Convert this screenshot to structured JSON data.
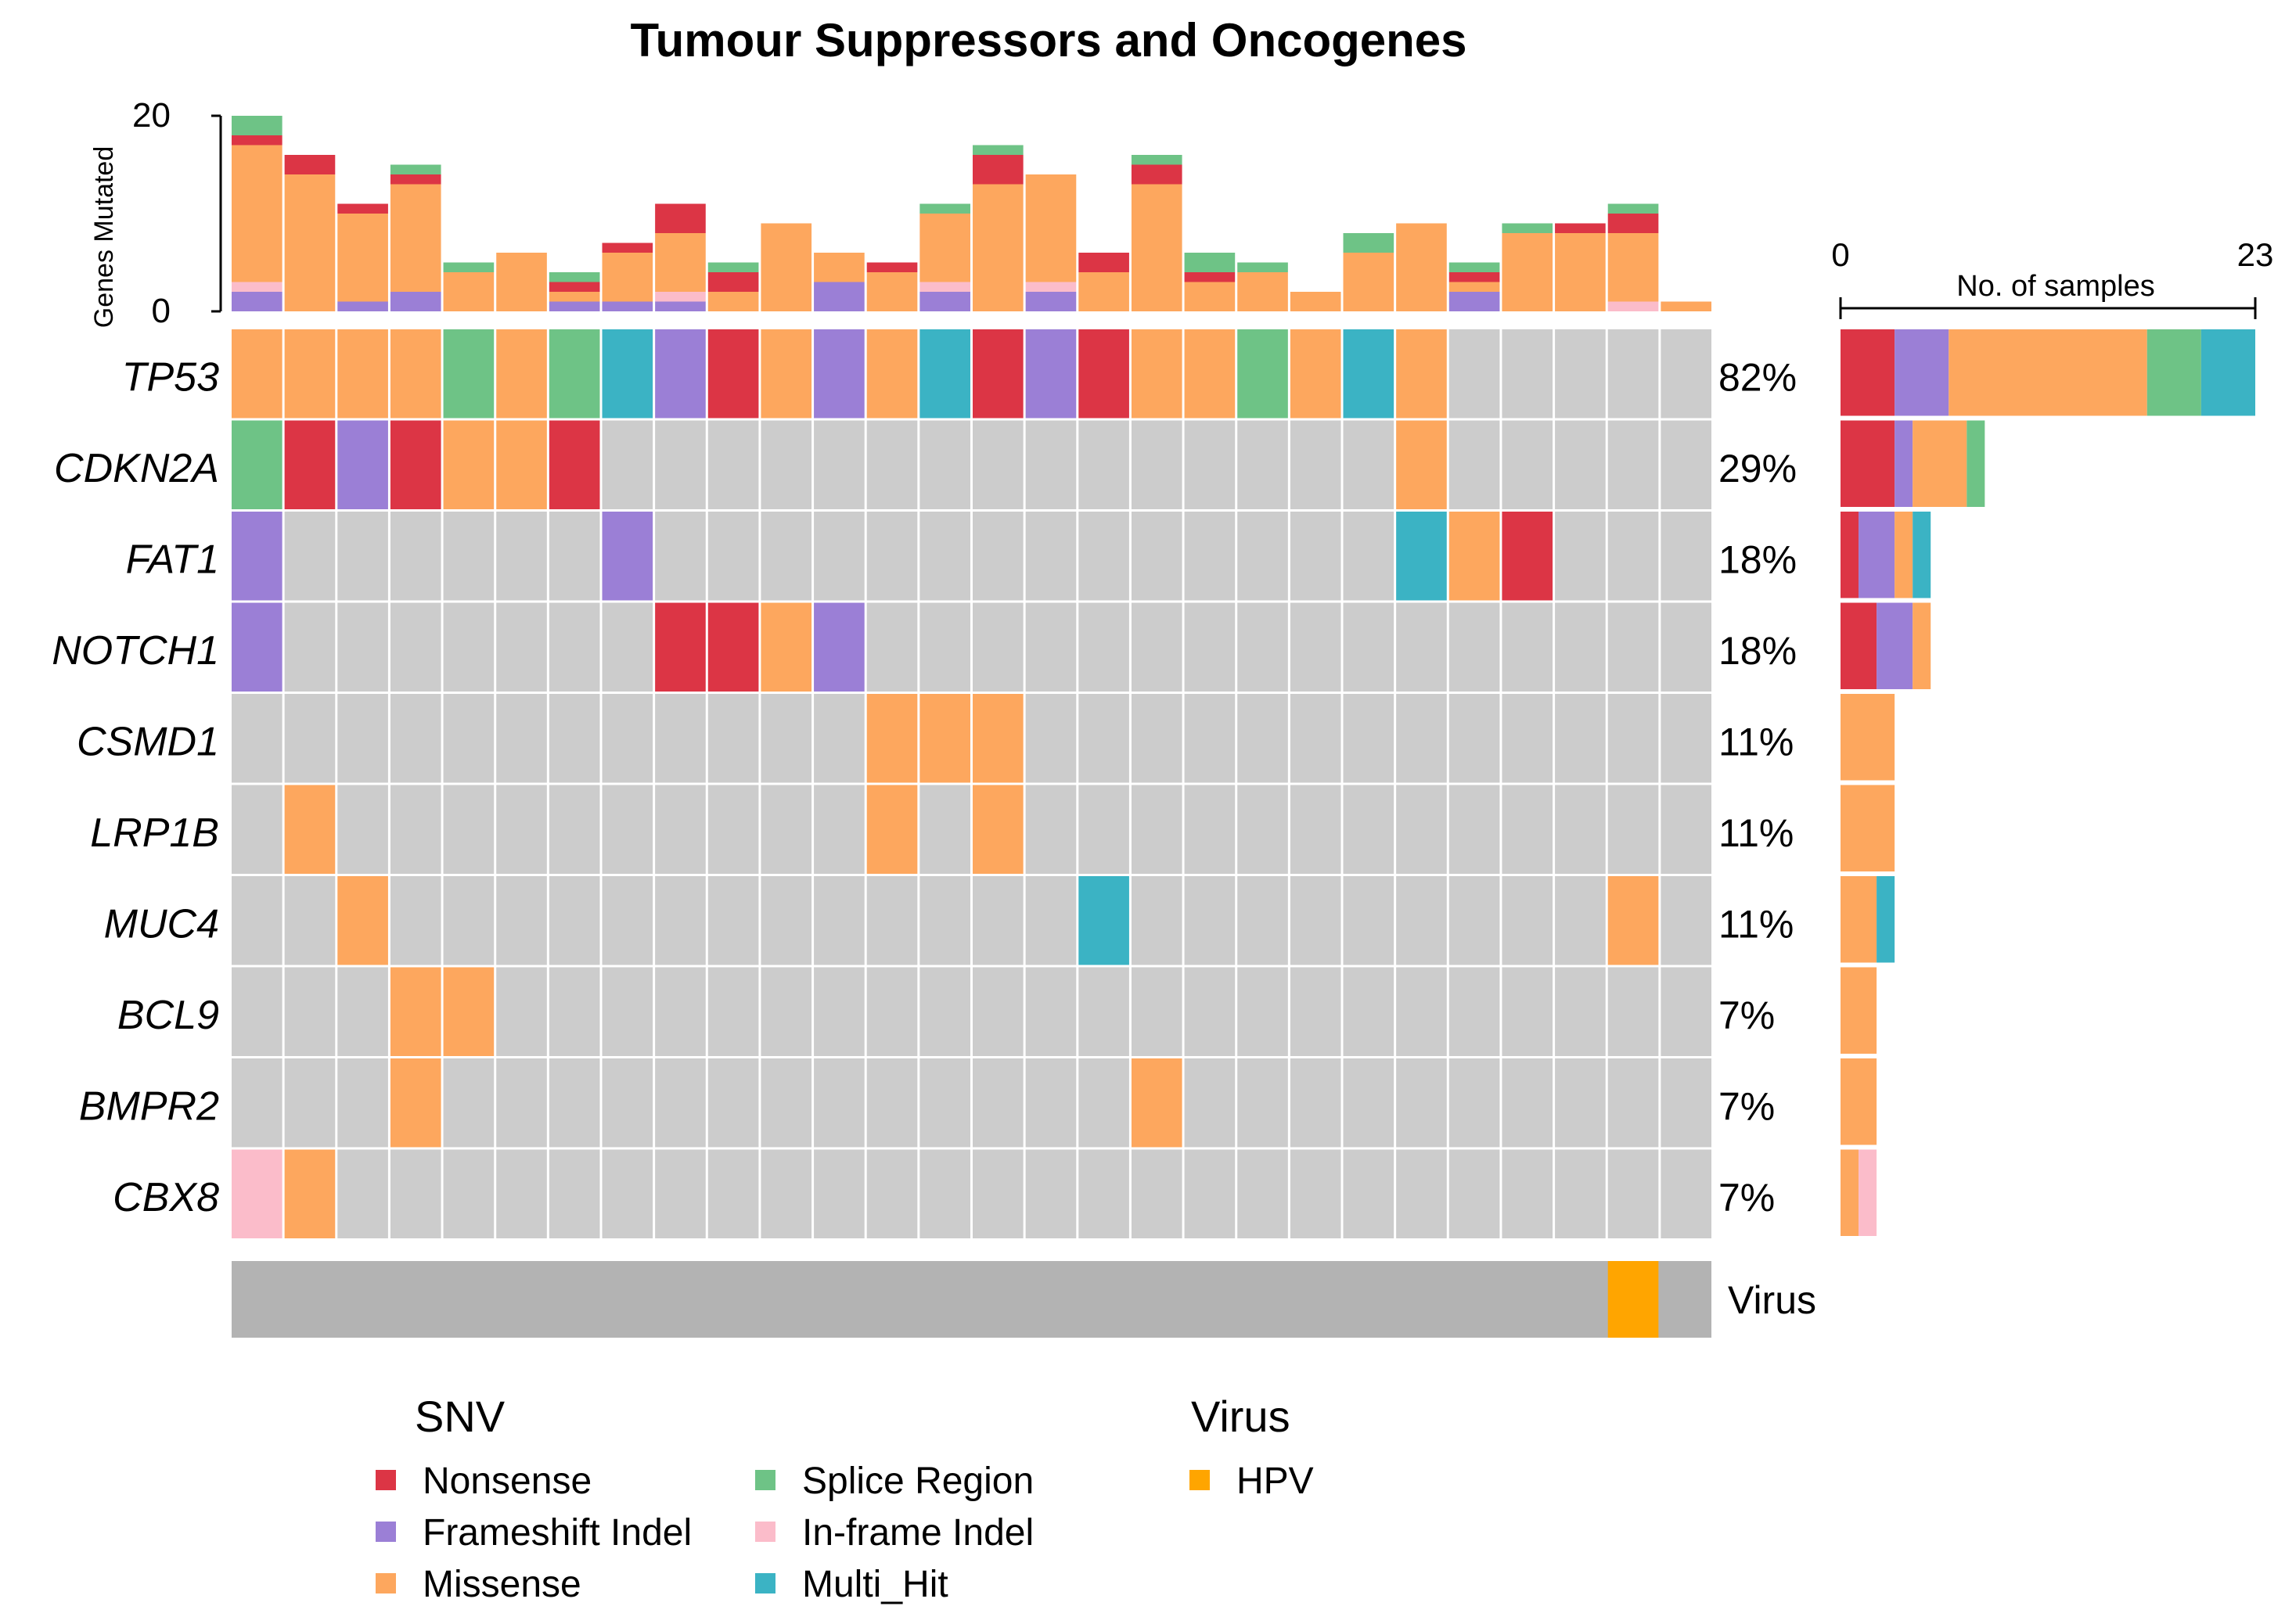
{
  "chart_data": {
    "type": "oncoplot",
    "title": "Tumour Suppressors and Oncogenes",
    "top_barplot": {
      "ylabel": "Genes Mutated",
      "ylim": [
        0,
        20
      ],
      "yticks": [
        "0",
        "20"
      ]
    },
    "side_barplot": {
      "xlabel": "No. of samples",
      "xlim": [
        0,
        23
      ],
      "xticks": [
        "0",
        "23"
      ]
    },
    "colors": {
      "Nonsense": "#dc3545",
      "Frameshift Indel": "#9b7fd6",
      "Missense": "#fda75e",
      "Splice Region": "#6ec386",
      "In-frame Indel": "#fbbcca",
      "Multi_Hit": "#3bb3c4",
      "none": "#cccccc",
      "virus_bg": "#b3b3b3",
      "HPV": "#ffa500"
    },
    "genes": [
      "TP53",
      "CDKN2A",
      "FAT1",
      "NOTCH1",
      "CSMD1",
      "LRP1B",
      "MUC4",
      "BCL9",
      "BMPR2",
      "CBX8"
    ],
    "percentages": [
      "82%",
      "29%",
      "18%",
      "18%",
      "11%",
      "11%",
      "11%",
      "7%",
      "7%",
      "7%"
    ],
    "n_samples": 28,
    "matrix": [
      [
        "Missense",
        "Missense",
        "Missense",
        "Missense",
        "Splice Region",
        "Missense",
        "Splice Region",
        "Multi_Hit",
        "Frameshift Indel",
        "Nonsense",
        "Missense",
        "Frameshift Indel",
        "Missense",
        "Multi_Hit",
        "Nonsense",
        "Frameshift Indel",
        "Nonsense",
        "Missense",
        "Missense",
        "Splice Region",
        "Missense",
        "Multi_Hit",
        "Missense",
        "",
        "",
        "",
        "",
        ""
      ],
      [
        "Splice Region",
        "Nonsense",
        "Frameshift Indel",
        "Nonsense",
        "Missense",
        "Missense",
        "Nonsense",
        "",
        "",
        "",
        "",
        "",
        "",
        "",
        "",
        "",
        "",
        "",
        "",
        "",
        "",
        "",
        "Missense",
        "",
        "",
        "",
        "",
        ""
      ],
      [
        "Frameshift Indel",
        "",
        "",
        "",
        "",
        "",
        "",
        "Frameshift Indel",
        "",
        "",
        "",
        "",
        "",
        "",
        "",
        "",
        "",
        "",
        "",
        "",
        "",
        "",
        "Multi_Hit",
        "Missense",
        "Nonsense",
        "",
        "",
        ""
      ],
      [
        "Frameshift Indel",
        "",
        "",
        "",
        "",
        "",
        "",
        "",
        "Nonsense",
        "Nonsense",
        "Missense",
        "Frameshift Indel",
        "",
        "",
        "",
        "",
        "",
        "",
        "",
        "",
        "",
        "",
        "",
        "",
        "",
        "",
        "",
        ""
      ],
      [
        "",
        "",
        "",
        "",
        "",
        "",
        "",
        "",
        "",
        "",
        "",
        "",
        "Missense",
        "Missense",
        "Missense",
        "",
        "",
        "",
        "",
        "",
        "",
        "",
        "",
        "",
        "",
        "",
        "",
        ""
      ],
      [
        "",
        "Missense",
        "",
        "",
        "",
        "",
        "",
        "",
        "",
        "",
        "",
        "",
        "Missense",
        "",
        "Missense",
        "",
        "",
        "",
        "",
        "",
        "",
        "",
        "",
        "",
        "",
        "",
        "",
        ""
      ],
      [
        "",
        "",
        "Missense",
        "",
        "",
        "",
        "",
        "",
        "",
        "",
        "",
        "",
        "",
        "",
        "",
        "",
        "Multi_Hit",
        "",
        "",
        "",
        "",
        "",
        "",
        "",
        "",
        "",
        "Missense",
        ""
      ],
      [
        "",
        "",
        "",
        "Missense",
        "Missense",
        "",
        "",
        "",
        "",
        "",
        "",
        "",
        "",
        "",
        "",
        "",
        "",
        "",
        "",
        "",
        "",
        "",
        "",
        "",
        "",
        "",
        "",
        ""
      ],
      [
        "",
        "",
        "",
        "Missense",
        "",
        "",
        "",
        "",
        "",
        "",
        "",
        "",
        "",
        "",
        "",
        "",
        "",
        "Missense",
        "",
        "",
        "",
        "",
        "",
        "",
        "",
        "",
        "",
        ""
      ],
      [
        "In-frame Indel",
        "Missense",
        "",
        "",
        "",
        "",
        "",
        "",
        "",
        "",
        "",
        "",
        "",
        "",
        "",
        "",
        "",
        "",
        "",
        "",
        "",
        "",
        "",
        "",
        "",
        "",
        "",
        ""
      ]
    ],
    "top_bars": [
      [
        [
          "Frameshift Indel",
          2
        ],
        [
          "In-frame Indel",
          1
        ],
        [
          "Missense",
          14
        ],
        [
          "Nonsense",
          1
        ],
        [
          "Splice Region",
          2
        ]
      ],
      [
        [
          "Missense",
          14
        ],
        [
          "Nonsense",
          2
        ]
      ],
      [
        [
          "Frameshift Indel",
          1
        ],
        [
          "Missense",
          9
        ],
        [
          "Nonsense",
          1
        ]
      ],
      [
        [
          "Frameshift Indel",
          2
        ],
        [
          "Missense",
          11
        ],
        [
          "Nonsense",
          1
        ],
        [
          "Splice Region",
          1
        ]
      ],
      [
        [
          "Missense",
          4
        ],
        [
          "Splice Region",
          1
        ]
      ],
      [
        [
          "Missense",
          6
        ]
      ],
      [
        [
          "Frameshift Indel",
          1
        ],
        [
          "Missense",
          1
        ],
        [
          "Nonsense",
          1
        ],
        [
          "Splice Region",
          1
        ]
      ],
      [
        [
          "Frameshift Indel",
          1
        ],
        [
          "Missense",
          5
        ],
        [
          "Nonsense",
          1
        ]
      ],
      [
        [
          "Frameshift Indel",
          1
        ],
        [
          "In-frame Indel",
          1
        ],
        [
          "Missense",
          6
        ],
        [
          "Nonsense",
          3
        ]
      ],
      [
        [
          "Missense",
          2
        ],
        [
          "Nonsense",
          2
        ],
        [
          "Splice Region",
          1
        ]
      ],
      [
        [
          "Missense",
          9
        ]
      ],
      [
        [
          "Frameshift Indel",
          3
        ],
        [
          "Missense",
          3
        ]
      ],
      [
        [
          "Missense",
          4
        ],
        [
          "Nonsense",
          1
        ]
      ],
      [
        [
          "Frameshift Indel",
          2
        ],
        [
          "In-frame Indel",
          1
        ],
        [
          "Missense",
          7
        ],
        [
          "Splice Region",
          1
        ]
      ],
      [
        [
          "Missense",
          13
        ],
        [
          "Nonsense",
          3
        ],
        [
          "Splice Region",
          1
        ]
      ],
      [
        [
          "Frameshift Indel",
          2
        ],
        [
          "In-frame Indel",
          1
        ],
        [
          "Missense",
          11
        ]
      ],
      [
        [
          "Missense",
          4
        ],
        [
          "Nonsense",
          2
        ]
      ],
      [
        [
          "Missense",
          13
        ],
        [
          "Nonsense",
          2
        ],
        [
          "Splice Region",
          1
        ]
      ],
      [
        [
          "Missense",
          3
        ],
        [
          "Nonsense",
          1
        ],
        [
          "Splice Region",
          2
        ]
      ],
      [
        [
          "Missense",
          4
        ],
        [
          "Splice Region",
          1
        ]
      ],
      [
        [
          "Missense",
          2
        ]
      ],
      [
        [
          "Missense",
          6
        ],
        [
          "Splice Region",
          2
        ]
      ],
      [
        [
          "Missense",
          9
        ]
      ],
      [
        [
          "Frameshift Indel",
          2
        ],
        [
          "Missense",
          1
        ],
        [
          "Nonsense",
          1
        ],
        [
          "Splice Region",
          1
        ]
      ],
      [
        [
          "Missense",
          8
        ],
        [
          "Splice Region",
          1
        ]
      ],
      [
        [
          "Missense",
          8
        ],
        [
          "Nonsense",
          1
        ]
      ],
      [
        [
          "In-frame Indel",
          1
        ],
        [
          "Missense",
          7
        ],
        [
          "Nonsense",
          2
        ],
        [
          "Splice Region",
          1
        ]
      ],
      [
        [
          "Missense",
          1
        ]
      ]
    ],
    "side_bars": [
      [
        [
          "Nonsense",
          3
        ],
        [
          "Frameshift Indel",
          3
        ],
        [
          "Missense",
          11
        ],
        [
          "Splice Region",
          3
        ],
        [
          "Multi_Hit",
          3
        ]
      ],
      [
        [
          "Nonsense",
          3
        ],
        [
          "Frameshift Indel",
          1
        ],
        [
          "Missense",
          3
        ],
        [
          "Splice Region",
          1
        ]
      ],
      [
        [
          "Nonsense",
          1
        ],
        [
          "Frameshift Indel",
          2
        ],
        [
          "Missense",
          1
        ],
        [
          "Multi_Hit",
          1
        ]
      ],
      [
        [
          "Nonsense",
          2
        ],
        [
          "Frameshift Indel",
          2
        ],
        [
          "Missense",
          1
        ]
      ],
      [
        [
          "Missense",
          3
        ]
      ],
      [
        [
          "Missense",
          3
        ]
      ],
      [
        [
          "Missense",
          2
        ],
        [
          "Multi_Hit",
          1
        ]
      ],
      [
        [
          "Missense",
          2
        ]
      ],
      [
        [
          "Missense",
          2
        ]
      ],
      [
        [
          "Missense",
          1
        ],
        [
          "In-frame Indel",
          1
        ]
      ]
    ],
    "annotation": {
      "label": "Virus",
      "values": [
        "",
        "",
        "",
        "",
        "",
        "",
        "",
        "",
        "",
        "",
        "",
        "",
        "",
        "",
        "",
        "",
        "",
        "",
        "",
        "",
        "",
        "",
        "",
        "",
        "",
        "",
        "HPV",
        ""
      ]
    },
    "legend": {
      "snv_title": "SNV",
      "snv_items": [
        "Nonsense",
        "Frameshift Indel",
        "Missense",
        "Splice Region",
        "In-frame Indel",
        "Multi_Hit"
      ],
      "virus_title": "Virus",
      "virus_items": [
        "HPV"
      ]
    }
  }
}
